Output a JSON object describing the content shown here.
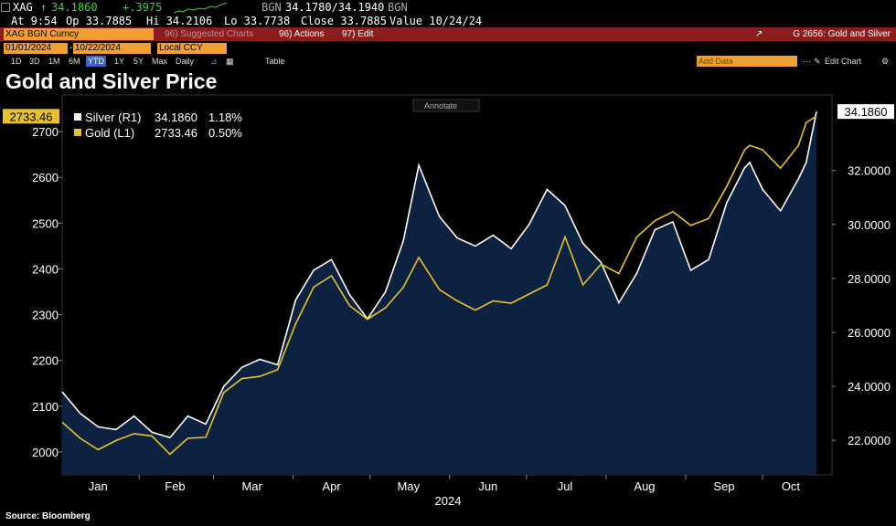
{
  "header": {
    "row1": {
      "ticker": "XAG",
      "price": "34.1860",
      "change": "+.3975",
      "source": "BGN",
      "bidask": "34.1780/34.1940",
      "source2": "BGN"
    },
    "row2": {
      "at": "At 9:54",
      "op": "Op 33.7885",
      "hi": "Hi 34.2106",
      "lo": "Lo 33.7738",
      "close": "Close 33.7885",
      "value": "Value 10/24/24"
    },
    "row3": {
      "security": "XAG BGN Curncy",
      "menu1": "96) Suggested Charts",
      "menu2": "96) Actions",
      "menu3": "97) Edit",
      "chart_name": "G 2656: Gold and Silver"
    },
    "row4": {
      "start_date": "01/01/2024",
      "end_date": "10/22/2024",
      "currency": "Local CCY"
    },
    "row5": {
      "ranges": [
        "1D",
        "3D",
        "1M",
        "6M",
        "YTD",
        "1Y",
        "5Y",
        "Max"
      ],
      "selected_range": "YTD",
      "frequency": "Daily",
      "table": "Table",
      "add_data": "Add Data",
      "edit_chart": "Edit Chart"
    },
    "annotate": "Annotate"
  },
  "colors": {
    "background": "#000000",
    "gold": "#e8c22a",
    "silver": "#ffffff",
    "area": "#0d2240",
    "menu_bar": "#8b1d1d",
    "field": "#f0a030",
    "up": "#3cd23c"
  },
  "chart_data": {
    "type": "line",
    "title": "Gold and Silver Price",
    "source": "Source: Bloomberg",
    "x_axis_label": "2024",
    "months": [
      "Jan",
      "Feb",
      "Mar",
      "Apr",
      "May",
      "Jun",
      "Jul",
      "Aug",
      "Sep",
      "Oct"
    ],
    "left_axis": {
      "ticks": [
        2000,
        2100,
        2200,
        2300,
        2400,
        2500,
        2600,
        2700
      ],
      "range": [
        1950,
        2780
      ]
    },
    "right_axis": {
      "ticks": [
        "22.0000",
        "24.0000",
        "26.0000",
        "28.0000",
        "30.0000",
        "32.0000"
      ],
      "range": [
        20.72,
        34.8
      ]
    },
    "legend": [
      {
        "name": "Silver (R1)",
        "value": "34.1860",
        "change": "1.18%"
      },
      {
        "name": "Gold (L1)",
        "value": "2733.46",
        "change": "0.50%"
      }
    ],
    "last_value_tags": {
      "gold": "2733.46",
      "silver": "34.1860"
    },
    "x_dates": [
      "2024-01-02",
      "2024-01-09",
      "2024-01-16",
      "2024-01-23",
      "2024-01-30",
      "2024-02-06",
      "2024-02-13",
      "2024-02-20",
      "2024-02-27",
      "2024-03-05",
      "2024-03-12",
      "2024-03-19",
      "2024-03-26",
      "2024-04-02",
      "2024-04-09",
      "2024-04-16",
      "2024-04-23",
      "2024-04-30",
      "2024-05-07",
      "2024-05-14",
      "2024-05-20",
      "2024-05-28",
      "2024-06-04",
      "2024-06-11",
      "2024-06-18",
      "2024-06-25",
      "2024-07-02",
      "2024-07-09",
      "2024-07-16",
      "2024-07-23",
      "2024-07-30",
      "2024-08-06",
      "2024-08-13",
      "2024-08-20",
      "2024-08-27",
      "2024-09-03",
      "2024-09-10",
      "2024-09-17",
      "2024-09-24",
      "2024-09-26",
      "2024-10-01",
      "2024-10-08",
      "2024-10-15",
      "2024-10-18",
      "2024-10-22"
    ],
    "series": [
      {
        "name": "Gold (L1)",
        "axis": "left",
        "values": [
          2065,
          2030,
          2005,
          2025,
          2040,
          2035,
          1995,
          2030,
          2032,
          2130,
          2160,
          2165,
          2180,
          2280,
          2360,
          2385,
          2320,
          2290,
          2315,
          2360,
          2425,
          2355,
          2330,
          2310,
          2330,
          2325,
          2345,
          2365,
          2470,
          2365,
          2410,
          2390,
          2470,
          2505,
          2525,
          2495,
          2510,
          2580,
          2660,
          2670,
          2660,
          2620,
          2670,
          2720,
          2733.46
        ]
      },
      {
        "name": "Silver (R1)",
        "axis": "right",
        "values": [
          23.8,
          23.0,
          22.5,
          22.4,
          22.9,
          22.3,
          22.1,
          22.9,
          22.6,
          24.0,
          24.7,
          25.0,
          24.8,
          27.2,
          28.3,
          28.7,
          27.4,
          26.5,
          27.5,
          29.4,
          32.2,
          30.3,
          29.5,
          29.2,
          29.6,
          29.1,
          30.0,
          31.3,
          30.7,
          29.3,
          28.6,
          27.1,
          28.2,
          29.8,
          30.1,
          28.3,
          28.7,
          30.8,
          32.1,
          32.3,
          31.3,
          30.5,
          31.7,
          32.3,
          34.186
        ]
      }
    ]
  }
}
